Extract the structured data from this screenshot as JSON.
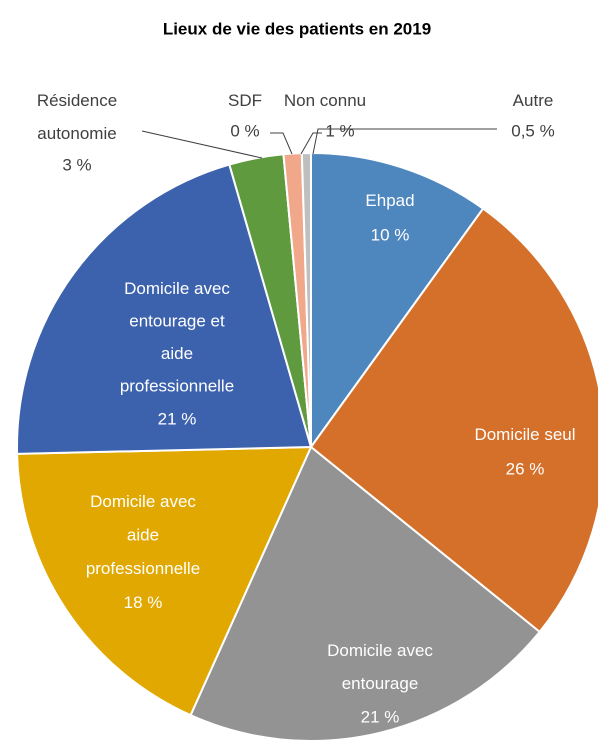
{
  "chart_data": {
    "type": "pie",
    "title": "Lieux de vie des patients en 2019",
    "categories": [
      "Ehpad",
      "Domicile seul",
      "Domicile avec\nentourage",
      "Domicile avec\naide\nprofessionnelle",
      "Domicile avec\nentourage et\naide\nprofessionnelle",
      "Résidence\nautonomie",
      "SDF",
      "Non connu",
      "Autre"
    ],
    "values": [
      10,
      26,
      21,
      18,
      21,
      3,
      0,
      1,
      0.5
    ],
    "value_labels": [
      "10 %",
      "26 %",
      "21 %",
      "18 %",
      "21 %",
      "3 %",
      "0 %",
      "1 %",
      "0,5 %"
    ],
    "colors": [
      "#4e86be",
      "#d4702a",
      "#939393",
      "#e0a800",
      "#3c62ad",
      "#5f9a3e",
      "#7f7f7f",
      "#f0a78a",
      "#bfbfbf"
    ]
  }
}
